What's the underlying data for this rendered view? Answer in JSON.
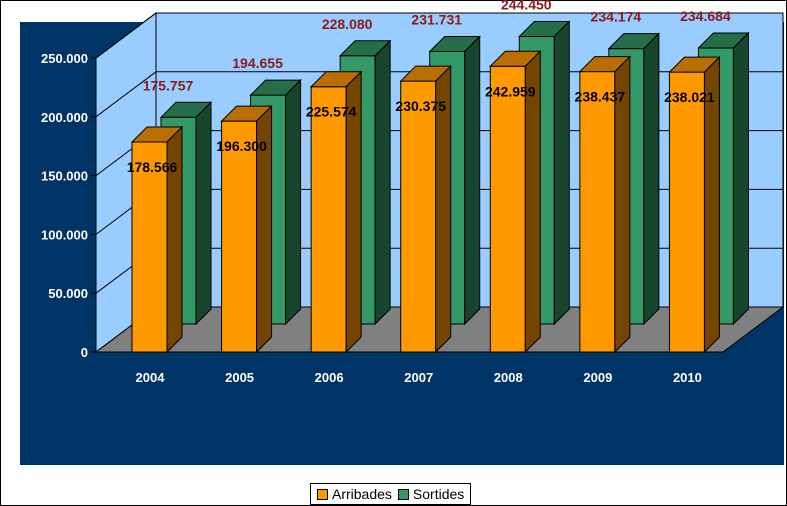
{
  "chart_data": {
    "type": "bar",
    "categories": [
      "2004",
      "2005",
      "2006",
      "2007",
      "2008",
      "2009",
      "2010"
    ],
    "series": [
      {
        "name": "Arribades",
        "values": [
          178566,
          196300,
          225574,
          230375,
          242959,
          238437,
          238021
        ],
        "labels": [
          "178.566",
          "196.300",
          "225.574",
          "230.375",
          "242.959",
          "238.437",
          "238.021"
        ],
        "color": "#ff9900"
      },
      {
        "name": "Sortides",
        "values": [
          175757,
          194655,
          228080,
          231731,
          244450,
          234174,
          234684
        ],
        "labels": [
          "175.757",
          "194.655",
          "228.080",
          "231.731",
          "244.450",
          "234.174",
          "234.684"
        ],
        "color": "#339966"
      }
    ],
    "yticks": [
      0,
      50000,
      100000,
      150000,
      200000,
      250000
    ],
    "ytick_labels": [
      "0",
      "50.000",
      "100.000",
      "150.000",
      "200.000",
      "250.000"
    ],
    "ylim": [
      0,
      250000
    ],
    "grid": true,
    "legend_position": "bottom",
    "three_d": true,
    "colors": {
      "plot_background": "#003366",
      "back_wall": "#99ccff",
      "floor": "#808080",
      "sortides_label": "#8b1a1a"
    }
  }
}
